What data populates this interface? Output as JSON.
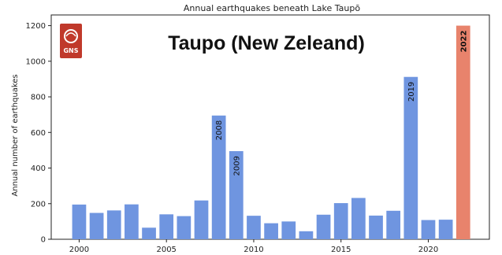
{
  "overlay_title": "Taupo (New Zeleand)",
  "logo": {
    "text": "GNS",
    "color": "#c0392b"
  },
  "colors": {
    "bar": "#6f95e0",
    "highlight": "#e8836c",
    "axis": "#222222"
  },
  "chart_data": {
    "type": "bar",
    "title": "Annual earthquakes beneath Lake Taupō",
    "xlabel": "",
    "ylabel": "Annual number of earthquakes",
    "ylim": [
      0,
      1260
    ],
    "xlim": [
      1998.4,
      2023.5
    ],
    "yticks": [
      0,
      200,
      400,
      600,
      800,
      1000,
      1200
    ],
    "xticks": [
      2000,
      2005,
      2010,
      2015,
      2020
    ],
    "grid": false,
    "categories": [
      2000,
      2001,
      2002,
      2003,
      2004,
      2005,
      2006,
      2007,
      2008,
      2009,
      2010,
      2011,
      2012,
      2013,
      2014,
      2015,
      2016,
      2017,
      2018,
      2019,
      2020,
      2021,
      2022
    ],
    "values": [
      195,
      148,
      162,
      196,
      65,
      140,
      130,
      218,
      695,
      495,
      132,
      90,
      100,
      45,
      138,
      203,
      232,
      133,
      160,
      912,
      108,
      110,
      1200
    ],
    "highlight": [
      2022
    ],
    "bar_labels": [
      {
        "year": 2008,
        "text": "2008"
      },
      {
        "year": 2009,
        "text": "2009"
      },
      {
        "year": 2019,
        "text": "2019"
      },
      {
        "year": 2022,
        "text": "2022",
        "bold": true
      }
    ]
  }
}
